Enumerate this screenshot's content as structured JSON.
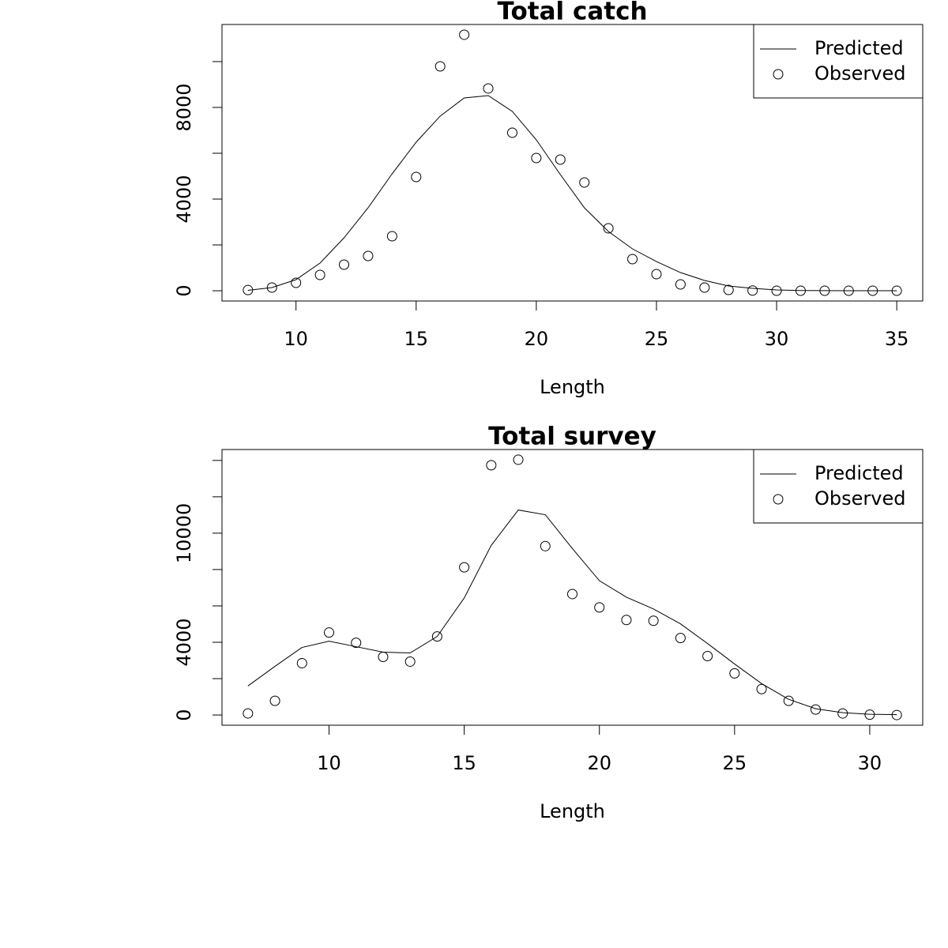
{
  "chart_data": [
    {
      "type": "line",
      "title": "Total catch",
      "x_label": "Length",
      "x": [
        8,
        9,
        10,
        11,
        12,
        13,
        14,
        15,
        16,
        17,
        18,
        19,
        20,
        21,
        22,
        23,
        24,
        25,
        26,
        27,
        28,
        29,
        30,
        31,
        32,
        33,
        34,
        35
      ],
      "series": [
        {
          "name": "Predicted",
          "style": "line",
          "color": "#000000",
          "values": [
            20,
            138,
            483,
            1207,
            2310,
            3621,
            5103,
            6483,
            7621,
            8414,
            8517,
            7828,
            6586,
            5069,
            3621,
            2586,
            1828,
            1276,
            793,
            448,
            207,
            103,
            34,
            10,
            5,
            0,
            0,
            0
          ]
        },
        {
          "name": "Observed",
          "style": "points",
          "color": "#000000",
          "values": [
            30,
            138,
            345,
            690,
            1138,
            1517,
            2379,
            4966,
            9793,
            11172,
            8828,
            6897,
            5793,
            5724,
            4724,
            2724,
            1379,
            724,
            276,
            138,
            34,
            10,
            0,
            0,
            0,
            0,
            0,
            0
          ]
        }
      ],
      "xlim": [
        6.92,
        36.08
      ],
      "xticks": [
        10,
        15,
        20,
        25,
        30,
        35
      ],
      "ylim": [
        -447,
        11619
      ],
      "yticks": [
        0,
        4000,
        8000
      ],
      "yminorticks": [
        2000,
        6000,
        10000
      ],
      "legend": "topright"
    },
    {
      "type": "line",
      "title": "Total survey",
      "x_label": "Length",
      "x": [
        7,
        8,
        9,
        10,
        11,
        12,
        13,
        14,
        15,
        16,
        17,
        18,
        19,
        20,
        21,
        22,
        23,
        24,
        25,
        26,
        27,
        28,
        29,
        30,
        31
      ],
      "series": [
        {
          "name": "Predicted",
          "style": "line",
          "color": "#000000",
          "values": [
            1598,
            2678,
            3715,
            4060,
            3758,
            3456,
            3413,
            4320,
            6436,
            9330,
            11274,
            11015,
            9158,
            7387,
            6479,
            5832,
            5011,
            3931,
            2808,
            1728,
            864,
            346,
            130,
            43,
            20
          ]
        },
        {
          "name": "Observed",
          "style": "points",
          "color": "#000000",
          "values": [
            86,
            778,
            2851,
            4536,
            3974,
            3197,
            2937,
            4320,
            8121,
            13737,
            14039,
            9287,
            6652,
            5918,
            5227,
            5184,
            4233,
            3240,
            2289,
            1425,
            778,
            302,
            86,
            20,
            0
          ]
        }
      ],
      "xlim": [
        6.04,
        31.96
      ],
      "xticks": [
        10,
        15,
        20,
        25,
        30
      ],
      "ylim": [
        -562,
        14601
      ],
      "yticks": [
        0,
        4000,
        10000
      ],
      "yminorticks": [
        2000,
        6000,
        8000,
        12000,
        14000
      ],
      "legend": "topright"
    }
  ]
}
